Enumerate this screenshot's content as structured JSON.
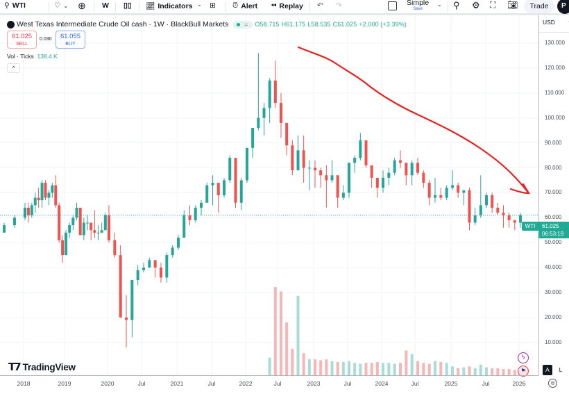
{
  "toolbar": {
    "symbol": "WTI",
    "interval": "W",
    "indicators": "Indicators",
    "alert": "Alert",
    "replay": "Replay",
    "layout_name": "Simple",
    "layout_save": "Save",
    "trade": "Trade",
    "profile": "P"
  },
  "legend": {
    "title": "West Texas Intermediate Crude Oil cash · 1W · BlackBull Markets",
    "open": "O58.715",
    "high": "H61.175",
    "low": "L58.535",
    "close": "C61.025",
    "change": "+2.000 (+3.39%)"
  },
  "trade_panel": {
    "sell_price": "61.025",
    "sell_label": "SELL",
    "spread": "0.030",
    "buy_price": "61.055",
    "buy_label": "BUY"
  },
  "volume_legend": {
    "label": "Vol · Ticks",
    "value": "138.4 K"
  },
  "price_axis": {
    "currency": "USD",
    "ticks": [
      "130.000",
      "120.000",
      "110.000",
      "100.000",
      "90.000",
      "80.000",
      "70.000",
      "60.000",
      "50.000",
      "40.000",
      "30.000",
      "20.000",
      "10.000"
    ]
  },
  "last_price": {
    "symbol": "WTI",
    "price": "61.025",
    "countdown": "06:53:19"
  },
  "time_axis": {
    "ticks": [
      "2018",
      "2019",
      "2020",
      "Jul",
      "2021",
      "Jul",
      "2022",
      "Jul",
      "2023",
      "Jul",
      "2024",
      "Jul",
      "2025",
      "Jul",
      "2026"
    ]
  },
  "scale_buttons": {
    "auto": "A",
    "log": "L"
  },
  "logo": "TradingView",
  "colors": {
    "up": "#26a69a",
    "down": "#ef5350",
    "annotation": "#e8201e",
    "accent": "#22ab94"
  },
  "chart_data": {
    "type": "candlestick",
    "start": "2017-07",
    "period": "monthly approximation of weekly candles",
    "ylim": [
      0,
      135
    ],
    "close": [
      50,
      47,
      52,
      54,
      57,
      60,
      64,
      61,
      65,
      68,
      67,
      74,
      68,
      70,
      73,
      65,
      51,
      45,
      54,
      57,
      60,
      64,
      53,
      58,
      58,
      55,
      54,
      54,
      55,
      61,
      51,
      45,
      20,
      19,
      35,
      39,
      40,
      43,
      40,
      36,
      45,
      48,
      52,
      61,
      59,
      64,
      66,
      73,
      74,
      69,
      75,
      84,
      66,
      75,
      88,
      96,
      100,
      104,
      115,
      106,
      98,
      89,
      79,
      87,
      80,
      80,
      79,
      77,
      75,
      77,
      68,
      70,
      82,
      84,
      91,
      81,
      76,
      72,
      76,
      78,
      83,
      82,
      77,
      82,
      78,
      74,
      68,
      69,
      68,
      72,
      73,
      70,
      71,
      58,
      61,
      65,
      69,
      64,
      62,
      61,
      59,
      58,
      61
    ],
    "high": [
      52,
      51,
      53,
      55,
      58,
      61,
      66,
      66,
      66,
      70,
      72,
      75,
      75,
      71,
      74,
      77,
      66,
      53,
      55,
      58,
      61,
      66,
      64,
      60,
      61,
      58,
      63,
      57,
      58,
      62,
      65,
      54,
      49,
      29,
      35,
      41,
      42,
      44,
      43,
      42,
      46,
      49,
      53,
      63,
      65,
      65,
      67,
      74,
      77,
      74,
      76,
      85,
      84,
      76,
      88,
      96,
      126,
      106,
      116,
      123,
      110,
      98,
      91,
      93,
      93,
      83,
      83,
      80,
      81,
      83,
      77,
      73,
      82,
      85,
      94,
      90,
      80,
      76,
      79,
      80,
      84,
      87,
      80,
      83,
      84,
      79,
      75,
      76,
      72,
      73,
      79,
      74,
      71,
      72,
      64,
      77,
      70,
      70,
      66,
      65,
      62,
      59,
      62
    ],
    "low": [
      45,
      46,
      47,
      51,
      54,
      56,
      59,
      58,
      60,
      62,
      64,
      64,
      67,
      65,
      68,
      64,
      50,
      42,
      45,
      52,
      55,
      59,
      53,
      51,
      55,
      51,
      52,
      51,
      54,
      55,
      50,
      44,
      20,
      8,
      12,
      33,
      38,
      40,
      36,
      34,
      34,
      44,
      47,
      52,
      57,
      58,
      61,
      66,
      65,
      62,
      68,
      74,
      64,
      63,
      74,
      84,
      95,
      93,
      98,
      104,
      92,
      85,
      77,
      79,
      74,
      71,
      72,
      72,
      64,
      74,
      64,
      67,
      68,
      78,
      83,
      80,
      72,
      68,
      70,
      73,
      77,
      80,
      73,
      73,
      77,
      72,
      65,
      66,
      67,
      67,
      71,
      68,
      65,
      55,
      57,
      60,
      64,
      62,
      61,
      56,
      56,
      55,
      56
    ],
    "volume_start": "2022-05",
    "volume_pct_of_max": [
      20,
      100,
      95,
      60,
      30,
      90,
      25,
      18,
      18,
      17,
      18,
      16,
      15,
      15,
      16,
      14,
      13,
      14,
      14,
      15,
      14,
      14,
      13,
      14,
      28,
      24,
      16,
      14,
      13,
      16,
      15,
      14,
      10,
      8,
      9,
      10,
      8,
      12,
      9,
      8,
      8,
      7,
      7,
      6,
      5
    ]
  }
}
